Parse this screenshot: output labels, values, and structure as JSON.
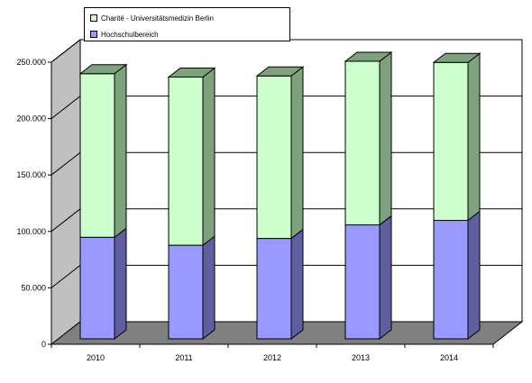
{
  "chart_data": {
    "type": "bar",
    "stacked": true,
    "three_d": true,
    "categories": [
      "2010",
      "2011",
      "2012",
      "2013",
      "2014"
    ],
    "series": [
      {
        "name": "Hochschulbereich",
        "values": [
          90000,
          83000,
          89000,
          101000,
          105000
        ],
        "color": "#9999ff",
        "side_color": "#5f5f9f"
      },
      {
        "name": "Charité - Universitätsmedizin Berlin",
        "values": [
          145000,
          149000,
          144000,
          145000,
          140000
        ],
        "color": "#ccffcc",
        "side_color": "#7da27d"
      }
    ],
    "ylim": [
      0,
      250000
    ],
    "yticks": [
      0,
      50000,
      100000,
      150000,
      200000,
      250000
    ],
    "ytick_labels": [
      "0",
      "50.000",
      "100.000",
      "150.000",
      "200.000",
      "250.000"
    ],
    "grid": true,
    "legend_position": "top",
    "wall_color": "#c0c0c0",
    "floor_color": "#808080"
  }
}
